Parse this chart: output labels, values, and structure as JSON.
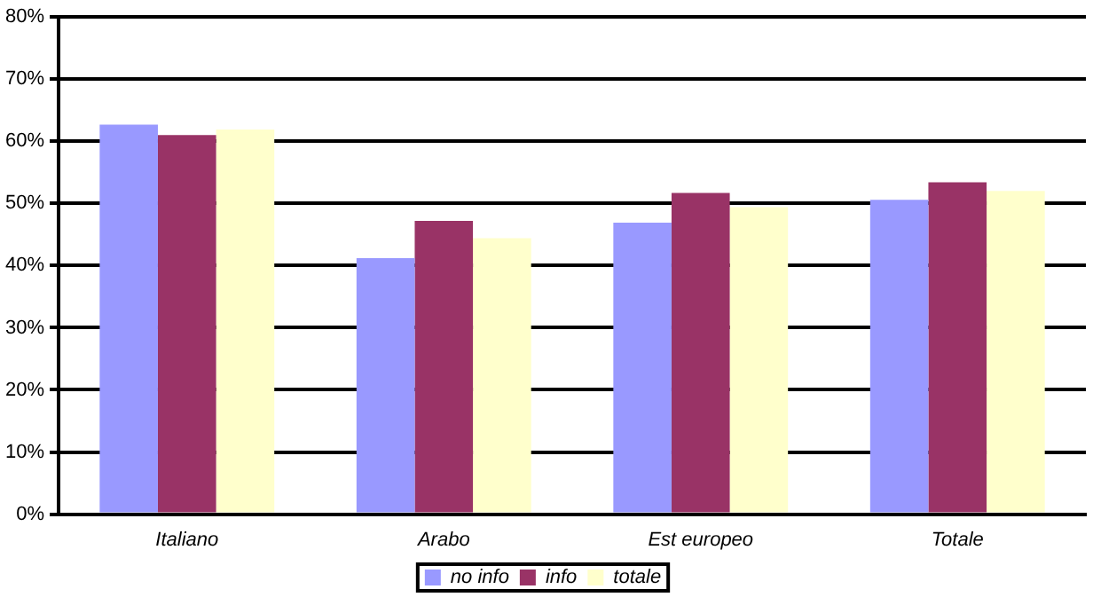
{
  "chart_data": {
    "type": "bar",
    "categories": [
      "Italiano",
      "Arabo",
      "Est europeo",
      "Totale"
    ],
    "series": [
      {
        "name": "no info",
        "color": "#9999ff",
        "values": [
          62.7,
          41.2,
          46.9,
          50.6
        ]
      },
      {
        "name": "info",
        "color": "#993366",
        "values": [
          61.0,
          47.2,
          51.7,
          53.4
        ]
      },
      {
        "name": "totale",
        "color": "#ffffcc",
        "values": [
          61.9,
          44.4,
          49.4,
          52.0
        ]
      }
    ],
    "ylim": [
      0,
      80
    ],
    "yticks": [
      {
        "value": 0,
        "label": "0%"
      },
      {
        "value": 10,
        "label": "10%"
      },
      {
        "value": 20,
        "label": "20%"
      },
      {
        "value": 30,
        "label": "30%"
      },
      {
        "value": 40,
        "label": "40%"
      },
      {
        "value": 50,
        "label": "50%"
      },
      {
        "value": 60,
        "label": "60%"
      },
      {
        "value": 70,
        "label": "70%"
      },
      {
        "value": 80,
        "label": "80%"
      }
    ],
    "grid": "y",
    "legend": "bottom"
  }
}
